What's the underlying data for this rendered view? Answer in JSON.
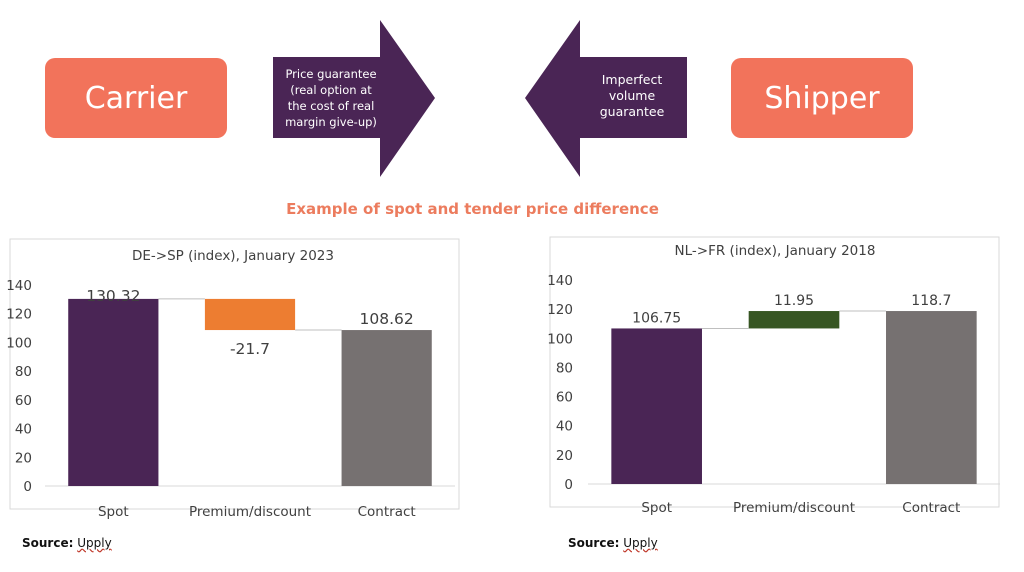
{
  "top": {
    "carrier_label": "Carrier",
    "shipper_label": "Shipper",
    "arrow_right_text": "Price guarantee (real option at the cost of real margin give-up)",
    "arrow_left_text": "Imperfect volume guarantee",
    "subtitle": "Example of spot and tender price difference"
  },
  "colors": {
    "pill": "#f2735b",
    "arrow": "#4a2555",
    "subtitle": "#ec7c5e"
  },
  "chart_data": [
    {
      "type": "bar",
      "subtype": "waterfall",
      "title": "DE->SP (index), January 2023",
      "categories": [
        "Spot",
        "Premium/discount",
        "Contract"
      ],
      "values": [
        130.32,
        -21.7,
        108.62
      ],
      "data_labels": [
        "130.32",
        "-21.7",
        "108.62"
      ],
      "colors": [
        "#4a2555",
        "#ed7d31",
        "#767171"
      ],
      "ylim": [
        0,
        140
      ],
      "yticks": [
        0,
        20,
        40,
        60,
        80,
        100,
        120,
        140
      ],
      "grid": false
    },
    {
      "type": "bar",
      "subtype": "waterfall",
      "title": "NL->FR (index), January 2018",
      "categories": [
        "Spot",
        "Premium/discount",
        "Contract"
      ],
      "values": [
        106.75,
        11.95,
        118.7
      ],
      "data_labels": [
        "106.75",
        "11.95",
        "118.7"
      ],
      "colors": [
        "#4a2555",
        "#375623",
        "#767171"
      ],
      "ylim": [
        0,
        140
      ],
      "yticks": [
        0,
        20,
        40,
        60,
        80,
        100,
        120,
        140
      ],
      "grid": false
    }
  ],
  "sources": [
    {
      "label": "Source:",
      "name": "Upply"
    },
    {
      "label": "Source:",
      "name": "Upply"
    }
  ]
}
